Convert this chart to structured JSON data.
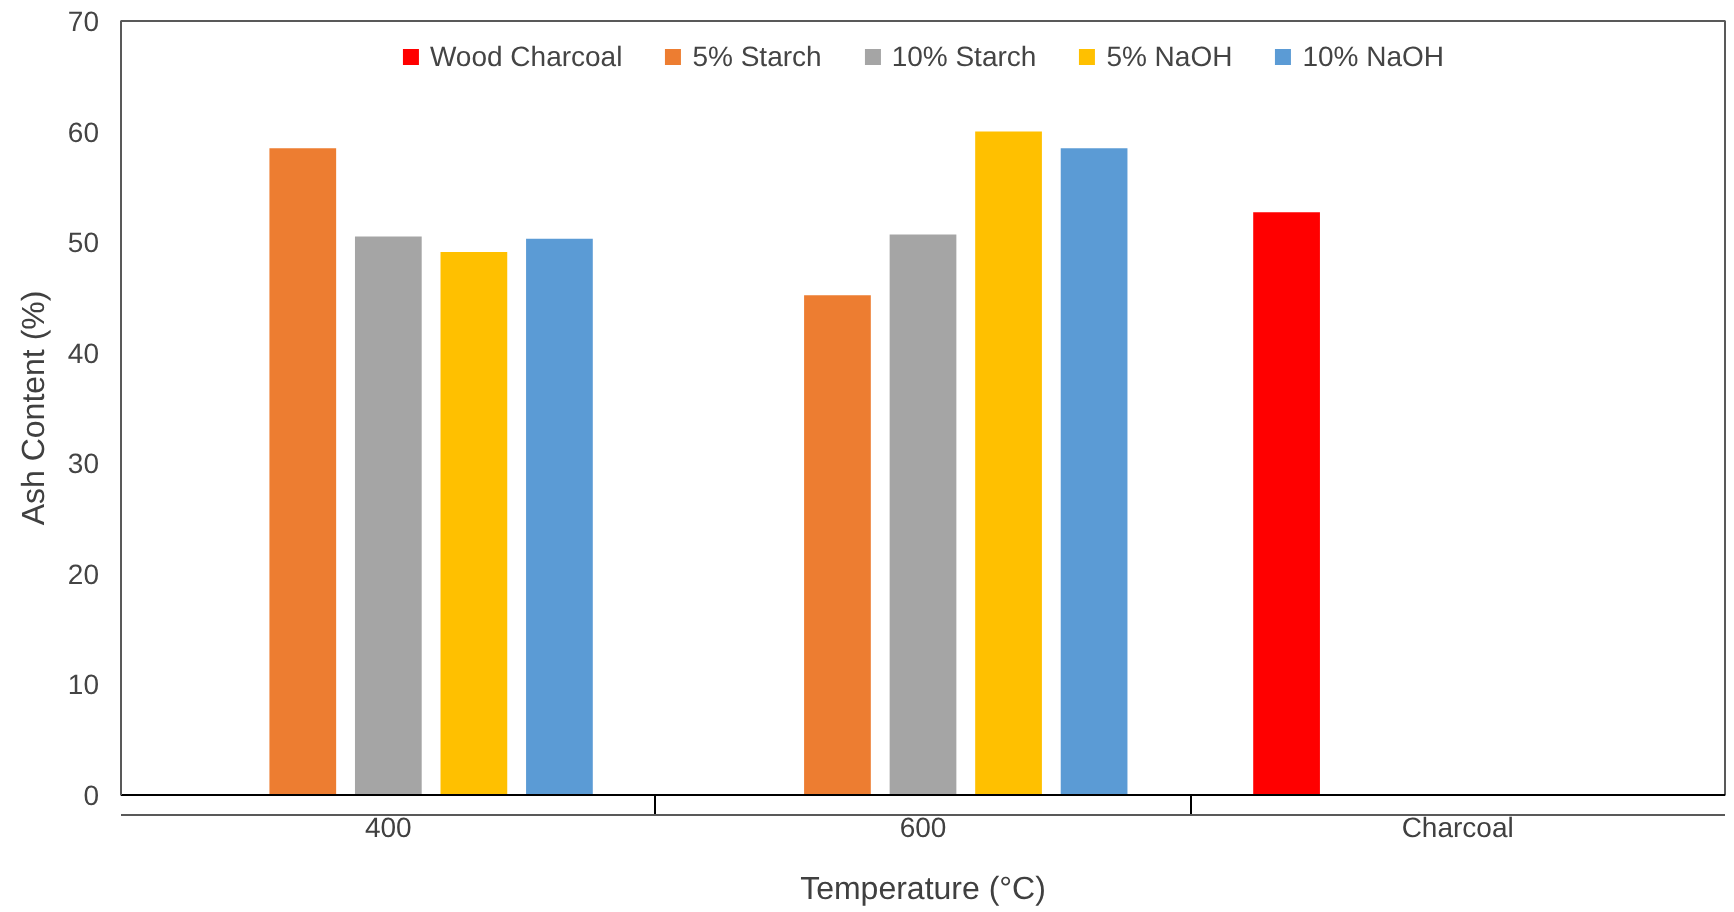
{
  "chart_data": {
    "type": "bar",
    "xlabel": "Temperature (°C)",
    "ylabel": "Ash Content (%)",
    "categories": [
      "400",
      "600",
      "Charcoal"
    ],
    "series": [
      {
        "name": "Wood Charcoal",
        "color": "#ff0000",
        "values": [
          null,
          null,
          52.7
        ]
      },
      {
        "name": "5% Starch",
        "color": "#ed7d31",
        "values": [
          58.5,
          45.2,
          null
        ]
      },
      {
        "name": "10% Starch",
        "color": "#a5a5a5",
        "values": [
          50.5,
          50.7,
          null
        ]
      },
      {
        "name": "5% NaOH",
        "color": "#ffc000",
        "values": [
          49.1,
          60.0,
          null
        ]
      },
      {
        "name": "10% NaOH",
        "color": "#5b9bd5",
        "values": [
          50.3,
          58.5,
          null
        ]
      }
    ],
    "ylim": [
      0,
      70
    ],
    "yticks": [
      0,
      10,
      20,
      30,
      40,
      50,
      60,
      70
    ],
    "grid": false,
    "legend": "top"
  }
}
